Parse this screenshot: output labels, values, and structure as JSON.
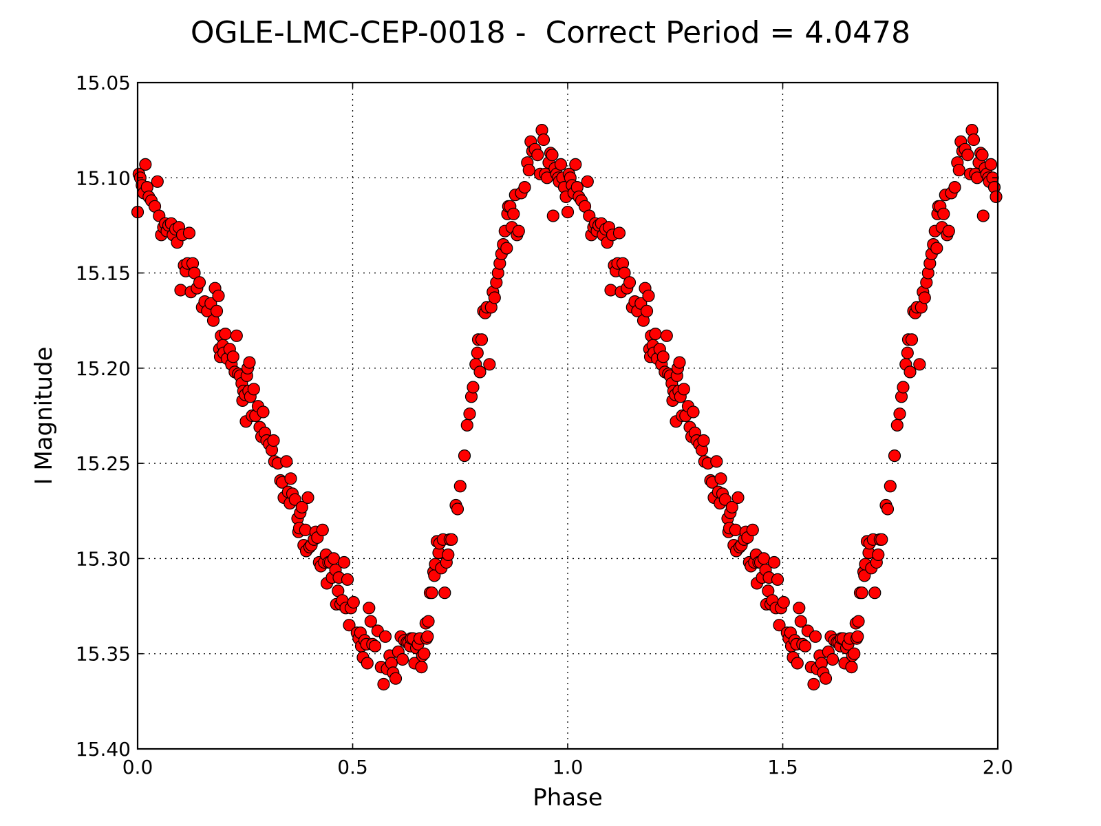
{
  "chart_data": {
    "type": "scatter",
    "title": "OGLE-LMC-CEP-0018 -  Correct Period = 4.0478",
    "xlabel": "Phase",
    "ylabel": "I Magnitude",
    "xlim": [
      0.0,
      2.0
    ],
    "ylim": [
      15.05,
      15.4
    ],
    "y_inverted": true,
    "grid": true,
    "marker_color": "#ff0000",
    "marker_edge_color": "#000000",
    "xticks": [
      "0.0",
      "0.5",
      "1.0",
      "1.5",
      "2.0"
    ],
    "yticks": [
      "15.05",
      "15.10",
      "15.15",
      "15.20",
      "15.25",
      "15.30",
      "15.35",
      "15.40"
    ],
    "note": "Phase-folded light curve; the 0-1 cycle is repeated for phase 1-2.",
    "base_cycle": [
      [
        0.0,
        15.118
      ],
      [
        0.003,
        15.098
      ],
      [
        0.006,
        15.1
      ],
      [
        0.01,
        15.104
      ],
      [
        0.014,
        15.108
      ],
      [
        0.018,
        15.093
      ],
      [
        0.022,
        15.105
      ],
      [
        0.026,
        15.11
      ],
      [
        0.032,
        15.112
      ],
      [
        0.04,
        15.115
      ],
      [
        0.046,
        15.102
      ],
      [
        0.05,
        15.12
      ],
      [
        0.055,
        15.13
      ],
      [
        0.06,
        15.126
      ],
      [
        0.064,
        15.124
      ],
      [
        0.068,
        15.128
      ],
      [
        0.072,
        15.125
      ],
      [
        0.078,
        15.124
      ],
      [
        0.082,
        15.13
      ],
      [
        0.088,
        15.127
      ],
      [
        0.092,
        15.134
      ],
      [
        0.096,
        15.126
      ],
      [
        0.1,
        15.159
      ],
      [
        0.104,
        15.13
      ],
      [
        0.108,
        15.146
      ],
      [
        0.112,
        15.149
      ],
      [
        0.116,
        15.145
      ],
      [
        0.12,
        15.129
      ],
      [
        0.124,
        15.16
      ],
      [
        0.128,
        15.145
      ],
      [
        0.132,
        15.15
      ],
      [
        0.138,
        15.158
      ],
      [
        0.144,
        15.155
      ],
      [
        0.15,
        15.168
      ],
      [
        0.156,
        15.165
      ],
      [
        0.162,
        15.17
      ],
      [
        0.17,
        15.166
      ],
      [
        0.176,
        15.175
      ],
      [
        0.18,
        15.158
      ],
      [
        0.184,
        15.17
      ],
      [
        0.188,
        15.162
      ],
      [
        0.19,
        15.19
      ],
      [
        0.192,
        15.194
      ],
      [
        0.194,
        15.183
      ],
      [
        0.198,
        15.188
      ],
      [
        0.2,
        15.192
      ],
      [
        0.204,
        15.182
      ],
      [
        0.208,
        15.195
      ],
      [
        0.214,
        15.19
      ],
      [
        0.218,
        15.198
      ],
      [
        0.222,
        15.194
      ],
      [
        0.226,
        15.202
      ],
      [
        0.23,
        15.183
      ],
      [
        0.234,
        15.203
      ],
      [
        0.238,
        15.204
      ],
      [
        0.242,
        15.208
      ],
      [
        0.244,
        15.217
      ],
      [
        0.246,
        15.212
      ],
      [
        0.25,
        15.214
      ],
      [
        0.252,
        15.228
      ],
      [
        0.254,
        15.204
      ],
      [
        0.256,
        15.2
      ],
      [
        0.258,
        15.212
      ],
      [
        0.26,
        15.197
      ],
      [
        0.262,
        15.215
      ],
      [
        0.266,
        15.225
      ],
      [
        0.27,
        15.211
      ],
      [
        0.274,
        15.225
      ],
      [
        0.28,
        15.22
      ],
      [
        0.284,
        15.231
      ],
      [
        0.288,
        15.236
      ],
      [
        0.292,
        15.223
      ],
      [
        0.296,
        15.234
      ],
      [
        0.3,
        15.238
      ],
      [
        0.306,
        15.24
      ],
      [
        0.312,
        15.243
      ],
      [
        0.316,
        15.238
      ],
      [
        0.318,
        15.249
      ],
      [
        0.326,
        15.25
      ],
      [
        0.332,
        15.259
      ],
      [
        0.336,
        15.26
      ],
      [
        0.34,
        15.268
      ],
      [
        0.346,
        15.249
      ],
      [
        0.35,
        15.265
      ],
      [
        0.354,
        15.271
      ],
      [
        0.356,
        15.258
      ],
      [
        0.36,
        15.266
      ],
      [
        0.366,
        15.269
      ],
      [
        0.372,
        15.279
      ],
      [
        0.374,
        15.286
      ],
      [
        0.376,
        15.284
      ],
      [
        0.378,
        15.276
      ],
      [
        0.382,
        15.273
      ],
      [
        0.386,
        15.293
      ],
      [
        0.39,
        15.285
      ],
      [
        0.392,
        15.296
      ],
      [
        0.396,
        15.268
      ],
      [
        0.4,
        15.294
      ],
      [
        0.404,
        15.293
      ],
      [
        0.41,
        15.29
      ],
      [
        0.414,
        15.286
      ],
      [
        0.418,
        15.289
      ],
      [
        0.422,
        15.302
      ],
      [
        0.426,
        15.304
      ],
      [
        0.43,
        15.285
      ],
      [
        0.434,
        15.302
      ],
      [
        0.438,
        15.298
      ],
      [
        0.44,
        15.313
      ],
      [
        0.444,
        15.302
      ],
      [
        0.448,
        15.302
      ],
      [
        0.452,
        15.31
      ],
      [
        0.456,
        15.3
      ],
      [
        0.46,
        15.306
      ],
      [
        0.462,
        15.324
      ],
      [
        0.466,
        15.317
      ],
      [
        0.468,
        15.31
      ],
      [
        0.472,
        15.324
      ],
      [
        0.476,
        15.322
      ],
      [
        0.48,
        15.302
      ],
      [
        0.484,
        15.326
      ],
      [
        0.488,
        15.311
      ],
      [
        0.492,
        15.335
      ],
      [
        0.496,
        15.326
      ],
      [
        0.502,
        15.323
      ],
      [
        0.51,
        15.339
      ],
      [
        0.514,
        15.342
      ],
      [
        0.518,
        15.339
      ],
      [
        0.52,
        15.346
      ],
      [
        0.524,
        15.352
      ],
      [
        0.528,
        15.343
      ],
      [
        0.532,
        15.345
      ],
      [
        0.534,
        15.355
      ],
      [
        0.538,
        15.326
      ],
      [
        0.542,
        15.333
      ],
      [
        0.546,
        15.345
      ],
      [
        0.552,
        15.346
      ],
      [
        0.558,
        15.338
      ],
      [
        0.566,
        15.357
      ],
      [
        0.572,
        15.366
      ],
      [
        0.576,
        15.341
      ],
      [
        0.58,
        15.358
      ],
      [
        0.586,
        15.351
      ],
      [
        0.59,
        15.355
      ],
      [
        0.594,
        15.36
      ],
      [
        0.6,
        15.363
      ],
      [
        0.606,
        15.349
      ],
      [
        0.612,
        15.341
      ],
      [
        0.616,
        15.353
      ],
      [
        0.62,
        15.343
      ],
      [
        0.626,
        15.344
      ],
      [
        0.63,
        15.344
      ],
      [
        0.634,
        15.346
      ],
      [
        0.636,
        15.342
      ],
      [
        0.64,
        15.342
      ],
      [
        0.644,
        15.355
      ],
      [
        0.648,
        15.347
      ],
      [
        0.652,
        15.345
      ],
      [
        0.656,
        15.342
      ],
      [
        0.66,
        15.357
      ],
      [
        0.662,
        15.351
      ],
      [
        0.666,
        15.35
      ],
      [
        0.67,
        15.334
      ],
      [
        0.672,
        15.342
      ],
      [
        0.674,
        15.341
      ],
      [
        0.676,
        15.333
      ],
      [
        0.68,
        15.318
      ],
      [
        0.684,
        15.318
      ],
      [
        0.688,
        15.307
      ],
      [
        0.69,
        15.309
      ],
      [
        0.692,
        15.303
      ],
      [
        0.696,
        15.291
      ],
      [
        0.7,
        15.297
      ],
      [
        0.702,
        15.292
      ],
      [
        0.706,
        15.305
      ],
      [
        0.71,
        15.29
      ],
      [
        0.714,
        15.318
      ],
      [
        0.718,
        15.302
      ],
      [
        0.722,
        15.298
      ],
      [
        0.726,
        15.29
      ],
      [
        0.73,
        15.29
      ],
      [
        0.74,
        15.272
      ],
      [
        0.744,
        15.274
      ],
      [
        0.75,
        15.262
      ],
      [
        0.76,
        15.246
      ],
      [
        0.766,
        15.23
      ],
      [
        0.772,
        15.224
      ],
      [
        0.776,
        15.215
      ],
      [
        0.78,
        15.21
      ],
      [
        0.786,
        15.198
      ],
      [
        0.79,
        15.192
      ],
      [
        0.792,
        15.185
      ],
      [
        0.796,
        15.202
      ],
      [
        0.8,
        15.185
      ],
      [
        0.804,
        15.17
      ],
      [
        0.808,
        15.171
      ],
      [
        0.812,
        15.168
      ],
      [
        0.818,
        15.198
      ],
      [
        0.822,
        15.168
      ],
      [
        0.826,
        15.16
      ],
      [
        0.83,
        15.163
      ],
      [
        0.834,
        15.155
      ],
      [
        0.838,
        15.15
      ],
      [
        0.842,
        15.145
      ],
      [
        0.846,
        15.14
      ],
      [
        0.85,
        15.135
      ],
      [
        0.854,
        15.128
      ],
      [
        0.858,
        15.137
      ],
      [
        0.86,
        15.119
      ],
      [
        0.862,
        15.115
      ],
      [
        0.866,
        15.115
      ],
      [
        0.87,
        15.126
      ],
      [
        0.874,
        15.119
      ],
      [
        0.878,
        15.109
      ],
      [
        0.882,
        15.13
      ],
      [
        0.886,
        15.128
      ],
      [
        0.892,
        15.108
      ],
      [
        0.9,
        15.105
      ],
      [
        0.906,
        15.092
      ],
      [
        0.91,
        15.096
      ],
      [
        0.914,
        15.081
      ],
      [
        0.918,
        15.086
      ],
      [
        0.924,
        15.085
      ],
      [
        0.93,
        15.088
      ],
      [
        0.936,
        15.098
      ],
      [
        0.94,
        15.075
      ],
      [
        0.944,
        15.08
      ],
      [
        0.948,
        15.098
      ],
      [
        0.952,
        15.1
      ],
      [
        0.956,
        15.092
      ],
      [
        0.96,
        15.087
      ],
      [
        0.964,
        15.088
      ],
      [
        0.966,
        15.12
      ],
      [
        0.97,
        15.095
      ],
      [
        0.974,
        15.098
      ],
      [
        0.978,
        15.1
      ],
      [
        0.98,
        15.102
      ],
      [
        0.984,
        15.093
      ],
      [
        0.988,
        15.1
      ],
      [
        0.992,
        15.105
      ],
      [
        0.996,
        15.11
      ]
    ]
  }
}
